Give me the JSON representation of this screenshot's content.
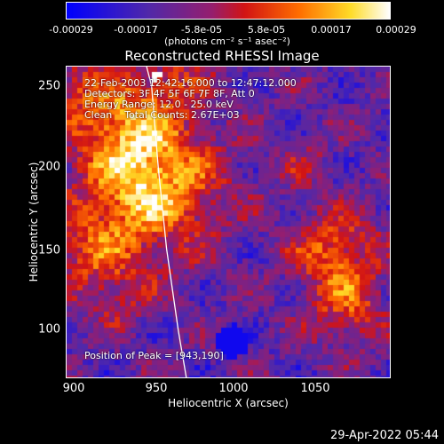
{
  "chart_data": {
    "type": "heatmap",
    "title": "Reconstructed RHESSI Image",
    "xlabel": "Heliocentric X (arcsec)",
    "ylabel": "Heliocentric Y (arcsec)",
    "xlim": [
      895,
      1090
    ],
    "ylim": [
      70,
      262
    ],
    "x_ticks": [
      "900",
      "950",
      "1000",
      "1050"
    ],
    "y_ticks": [
      "100",
      "150",
      "200",
      "250"
    ],
    "colorbar": {
      "tick_labels": [
        "-0.00029",
        "-0.00017",
        "-5.8e-05",
        "5.8e-05",
        "0.00017",
        "0.00029"
      ],
      "units": "(photons cm⁻² s⁻¹ asec⁻²)",
      "range": [
        -0.00029,
        0.00029
      ]
    },
    "annotations": {
      "line1": "22-Feb-2003 12:42:16.000 to 12:47:12.000",
      "line2": "Detectors: 3F 4F 5F 6F 7F 8F, Att 0",
      "line3": "Energy Range: 12.0 - 25.0 keV",
      "line4": "Clean    Total Counts: 2.67E+03",
      "peak": "Position of Peak = [943,190]"
    },
    "peak_position": [
      943,
      190
    ],
    "limb_curve": [
      [
        943,
        262
      ],
      [
        946,
        250
      ],
      [
        950,
        200
      ],
      [
        955,
        150
      ],
      [
        962,
        100
      ],
      [
        967,
        70
      ]
    ]
  },
  "timestamp": "29-Apr-2022 05:44",
  "colors": {
    "background": "#000000",
    "frame": "#ffffff",
    "limb": "#ffffff"
  }
}
